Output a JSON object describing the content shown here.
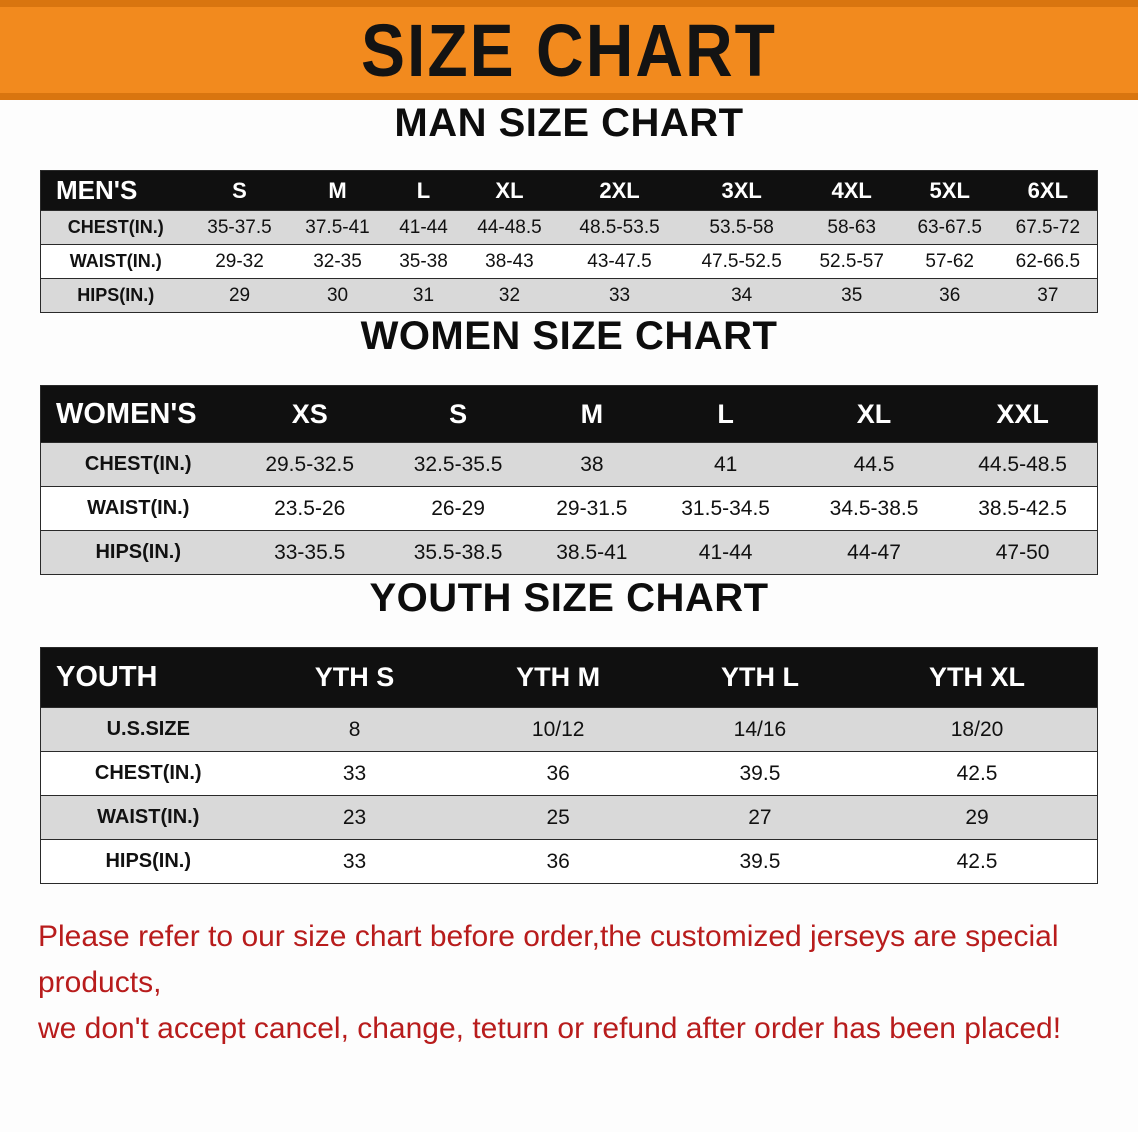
{
  "banner": {
    "title": "SIZE CHART"
  },
  "sections": [
    {
      "title": "MAN SIZE CHART",
      "columns": [
        "MEN'S",
        "S",
        "M",
        "L",
        "XL",
        "2XL",
        "3XL",
        "4XL",
        "5XL",
        "6XL"
      ],
      "rows": [
        [
          "CHEST(IN.)",
          "35-37.5",
          "37.5-41",
          "41-44",
          "44-48.5",
          "48.5-53.5",
          "53.5-58",
          "58-63",
          "63-67.5",
          "67.5-72"
        ],
        [
          "WAIST(IN.)",
          "29-32",
          "32-35",
          "35-38",
          "38-43",
          "43-47.5",
          "47.5-52.5",
          "52.5-57",
          "57-62",
          "62-66.5"
        ],
        [
          "HIPS(IN.)",
          "29",
          "30",
          "31",
          "32",
          "33",
          "34",
          "35",
          "36",
          "37"
        ]
      ]
    },
    {
      "title": "WOMEN SIZE CHART",
      "columns": [
        "WOMEN'S",
        "XS",
        "S",
        "M",
        "L",
        "XL",
        "XXL"
      ],
      "rows": [
        [
          "CHEST(IN.)",
          "29.5-32.5",
          "32.5-35.5",
          "38",
          "41",
          "44.5",
          "44.5-48.5"
        ],
        [
          "WAIST(IN.)",
          "23.5-26",
          "26-29",
          "29-31.5",
          "31.5-34.5",
          "34.5-38.5",
          "38.5-42.5"
        ],
        [
          "HIPS(IN.)",
          "33-35.5",
          "35.5-38.5",
          "38.5-41",
          "41-44",
          "44-47",
          "47-50"
        ]
      ]
    },
    {
      "title": "YOUTH SIZE CHART",
      "columns": [
        "YOUTH",
        "YTH S",
        "YTH M",
        "YTH L",
        "YTH XL"
      ],
      "rows": [
        [
          "U.S.SIZE",
          "8",
          "10/12",
          "14/16",
          "18/20"
        ],
        [
          "CHEST(IN.)",
          "33",
          "36",
          "39.5",
          "42.5"
        ],
        [
          "WAIST(IN.)",
          "23",
          "25",
          "27",
          "29"
        ],
        [
          "HIPS(IN.)",
          "33",
          "36",
          "39.5",
          "42.5"
        ]
      ]
    }
  ],
  "footer": {
    "line1": "Please refer to our size chart before order,the customized jerseys are special products,",
    "line2": "we don't accept cancel, change, teturn or refund after order has been placed!"
  },
  "colors": {
    "banner_bg": "#F28A1E",
    "banner_edge": "#D9750F",
    "row_stripe": "#D9D9D9",
    "header_bg": "#101010",
    "footer_text": "#B81C1C"
  }
}
